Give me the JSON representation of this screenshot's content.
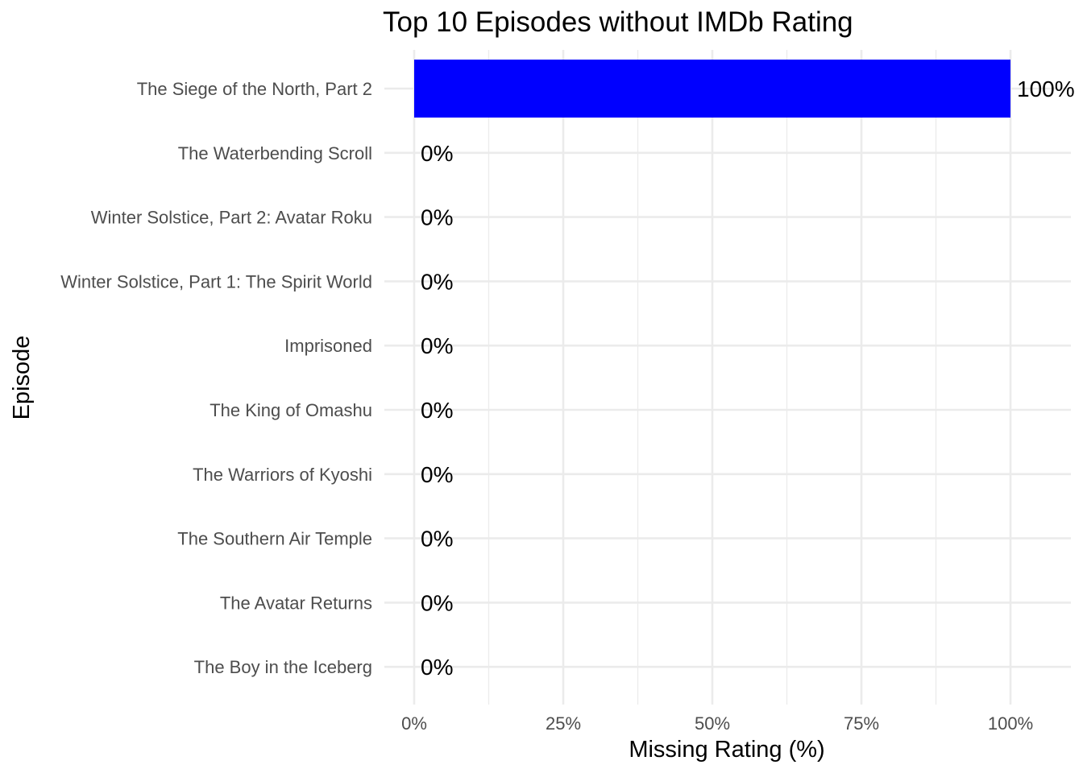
{
  "chart_data": {
    "type": "bar",
    "orientation": "horizontal",
    "title": "Top 10 Episodes without IMDb Rating",
    "xlabel": "Missing Rating (%)",
    "ylabel": "Episode",
    "categories": [
      "The Siege of the North, Part 2",
      "The Waterbending Scroll",
      "Winter Solstice, Part 2: Avatar Roku",
      "Winter Solstice, Part 1: The Spirit World",
      "Imprisoned",
      "The King of Omashu",
      "The Warriors of Kyoshi",
      "The Southern Air Temple",
      "The Avatar Returns",
      "The Boy in the Iceberg"
    ],
    "values": [
      100,
      0,
      0,
      0,
      0,
      0,
      0,
      0,
      0,
      0
    ],
    "value_labels": [
      "100%",
      "0%",
      "0%",
      "0%",
      "0%",
      "0%",
      "0%",
      "0%",
      "0%",
      "0%"
    ],
    "x_ticks": [
      0,
      25,
      50,
      75,
      100
    ],
    "x_tick_labels": [
      "0%",
      "25%",
      "50%",
      "75%",
      "100%"
    ],
    "xlim": [
      0,
      110
    ],
    "bar_color": "#0000ff",
    "grid": true,
    "legend": "none"
  }
}
